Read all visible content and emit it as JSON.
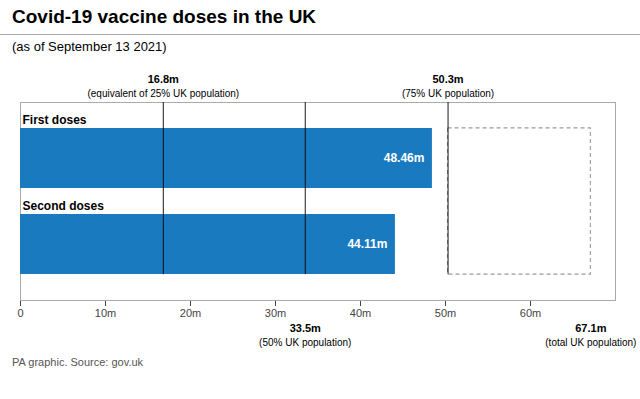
{
  "chart_data": {
    "type": "bar",
    "orientation": "horizontal",
    "title": "Covid-19 vaccine doses in the UK",
    "subtitle": "(as of September 13 2021)",
    "footnote": "PA graphic. Source: gov.uk",
    "categories": [
      "First doses",
      "Second doses"
    ],
    "values": [
      48.46,
      44.11
    ],
    "value_labels": [
      "48.46m",
      "44.11m"
    ],
    "data_labels": true,
    "color": "#1a7abf",
    "xlim": [
      0,
      70
    ],
    "xticks": [
      0,
      {
        "value": 10,
        "label": "10m"
      },
      {
        "value": 20,
        "label": "20m"
      },
      {
        "value": 30,
        "label": "30m"
      },
      {
        "value": 40,
        "label": "40m"
      },
      {
        "value": 50,
        "label": "50m"
      },
      {
        "value": 60,
        "label": "60m"
      }
    ],
    "grid": false,
    "annotations": [
      {
        "x": 16.8,
        "label": "16.8m",
        "note": "(equivalent of 25% UK population)",
        "line_style": "solid",
        "color": "#000000"
      },
      {
        "x": 33.5,
        "label": "33.5m",
        "note": "(50% UK population)",
        "line_style": "solid",
        "color": "#000000"
      },
      {
        "x": 50.3,
        "label": "50.3m",
        "note": "(75% UK population)",
        "line_style": "solid",
        "color": "#000000"
      },
      {
        "x": 67.1,
        "label": "67.1m",
        "note": "(total UK population)",
        "line_style": "dashed",
        "color": "#999999"
      }
    ]
  }
}
